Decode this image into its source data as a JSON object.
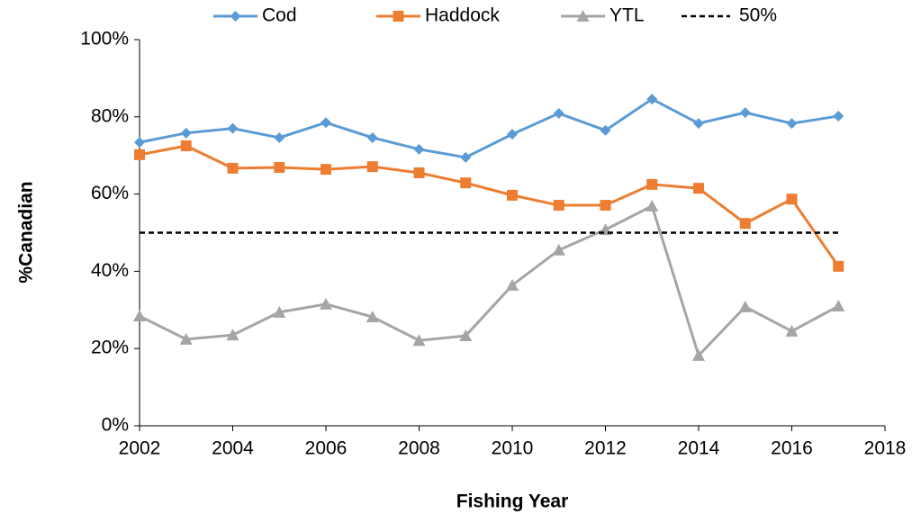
{
  "chart_data": {
    "type": "line",
    "x_label": "Fishing Year",
    "y_label": "%Canadian",
    "x": [
      2002,
      2003,
      2004,
      2005,
      2006,
      2007,
      2008,
      2009,
      2010,
      2011,
      2012,
      2013,
      2014,
      2015,
      2016,
      2017
    ],
    "series": [
      {
        "name": "Cod",
        "color": "#5b9bd5",
        "marker": "diamond",
        "values": [
          73.4,
          75.8,
          77,
          74.6,
          78.5,
          74.6,
          71.6,
          69.5,
          75.5,
          80.9,
          76.5,
          84.6,
          78.3,
          81.1,
          78.3,
          80.2
        ]
      },
      {
        "name": "Haddock",
        "color": "#ed7d31",
        "marker": "square",
        "values": [
          70.2,
          72.5,
          66.7,
          66.9,
          66.4,
          67.1,
          65.5,
          62.9,
          59.7,
          57.1,
          57.1,
          62.5,
          61.5,
          52.4,
          58.7,
          41.3
        ]
      },
      {
        "name": "YTL",
        "color": "#a5a5a5",
        "marker": "triangle",
        "values": [
          28.4,
          22.4,
          23.5,
          29.4,
          31.5,
          28.2,
          22.1,
          23.3,
          36.4,
          45.5,
          50.8,
          56.9,
          18.2,
          30.8,
          24.5,
          31
        ]
      },
      {
        "name": "50%",
        "color": "#000000",
        "dash": true,
        "values": [
          50,
          50,
          50,
          50,
          50,
          50,
          50,
          50,
          50,
          50,
          50,
          50,
          50,
          50,
          50,
          50
        ]
      }
    ],
    "xlim": [
      2002,
      2018
    ],
    "xticks": [
      2002,
      2004,
      2006,
      2008,
      2010,
      2012,
      2014,
      2016,
      2018
    ],
    "ylim": [
      0,
      100
    ],
    "yticks": [
      {
        "value": 0,
        "label": "0%"
      },
      {
        "value": 20,
        "label": "20%"
      },
      {
        "value": 40,
        "label": "40%"
      },
      {
        "value": 60,
        "label": "60%"
      },
      {
        "value": 80,
        "label": "80%"
      },
      {
        "value": 100,
        "label": "100%"
      }
    ],
    "legend": "top",
    "grid": false
  }
}
